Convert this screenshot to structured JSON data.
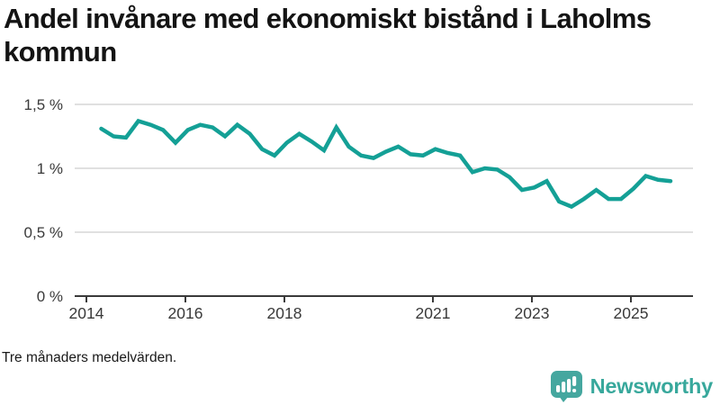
{
  "header": {
    "title": "Andel invånare med ekonomiskt bistånd i Laholms kommun",
    "title_lines": [
      "Andel invånare med ekonomiskt bistånd i Laholms",
      "kommun"
    ]
  },
  "footer": {
    "note": "Tre månaders medelvärden.",
    "brand": "Newsworthy"
  },
  "colors": {
    "line": "#14a096",
    "grid": "#e0e0e0",
    "axis": "#3a3a3a",
    "tick_label": "#3a3a3a",
    "title": "#141414",
    "brand_teal": "#45a79f",
    "wordmark_teal": "#38a89c",
    "background": "#ffffff"
  },
  "chart_data": {
    "type": "line",
    "title": "Andel invånare med ekonomiskt bistånd i Laholms kommun",
    "subtitle_note": "Tre månaders medelvärden.",
    "xlabel": "",
    "ylabel": "",
    "xlim": [
      2013.76,
      2026.25
    ],
    "ylim": [
      0,
      1.58
    ],
    "grid": "horizontal",
    "legend": "none",
    "x_ticks": [
      {
        "value": 2014,
        "label": "2014"
      },
      {
        "value": 2016,
        "label": "2016"
      },
      {
        "value": 2018,
        "label": "2018"
      },
      {
        "value": 2021,
        "label": "2021"
      },
      {
        "value": 2023,
        "label": "2023"
      },
      {
        "value": 2025,
        "label": "2025"
      }
    ],
    "y_ticks": [
      {
        "value": 0,
        "label": "0 %"
      },
      {
        "value": 0.5,
        "label": "0,5 %"
      },
      {
        "value": 1,
        "label": "1 %"
      },
      {
        "value": 1.5,
        "label": "1,5 %"
      }
    ],
    "series": [
      {
        "name": "Andel invånare med ekonomiskt bistånd (%)",
        "x": [
          2014.3,
          2014.55,
          2014.8,
          2015.05,
          2015.3,
          2015.55,
          2015.8,
          2016.05,
          2016.3,
          2016.55,
          2016.8,
          2017.05,
          2017.3,
          2017.55,
          2017.8,
          2018.05,
          2018.3,
          2018.55,
          2018.8,
          2019.05,
          2019.3,
          2019.55,
          2019.8,
          2020.05,
          2020.3,
          2020.55,
          2020.8,
          2021.05,
          2021.3,
          2021.55,
          2021.8,
          2022.05,
          2022.3,
          2022.55,
          2022.8,
          2023.05,
          2023.3,
          2023.55,
          2023.8,
          2024.05,
          2024.3,
          2024.55,
          2024.8,
          2025.05,
          2025.3,
          2025.55,
          2025.8
        ],
        "values": [
          1.31,
          1.25,
          1.24,
          1.37,
          1.34,
          1.3,
          1.2,
          1.3,
          1.34,
          1.32,
          1.25,
          1.34,
          1.27,
          1.15,
          1.1,
          1.2,
          1.27,
          1.21,
          1.14,
          1.32,
          1.17,
          1.1,
          1.08,
          1.13,
          1.17,
          1.11,
          1.1,
          1.15,
          1.12,
          1.1,
          0.97,
          1.0,
          0.99,
          0.93,
          0.83,
          0.85,
          0.9,
          0.74,
          0.7,
          0.76,
          0.83,
          0.76,
          0.76,
          0.84,
          0.94,
          0.91,
          0.9
        ]
      }
    ]
  }
}
